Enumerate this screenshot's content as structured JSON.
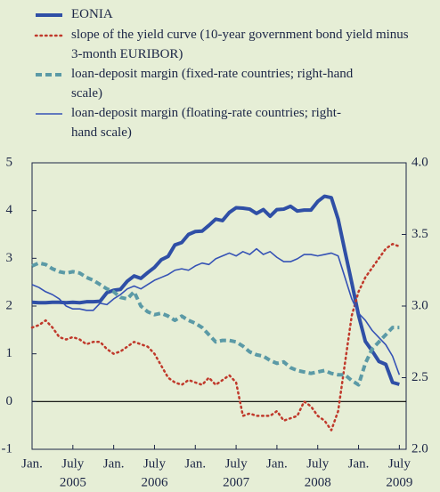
{
  "chart_data": {
    "type": "line",
    "legend": "top-left",
    "x": [
      "2005-01",
      "2005-02",
      "2005-03",
      "2005-04",
      "2005-05",
      "2005-06",
      "2005-07",
      "2005-08",
      "2005-09",
      "2005-10",
      "2005-11",
      "2005-12",
      "2006-01",
      "2006-02",
      "2006-03",
      "2006-04",
      "2006-05",
      "2006-06",
      "2006-07",
      "2006-08",
      "2006-09",
      "2006-10",
      "2006-11",
      "2006-12",
      "2007-01",
      "2007-02",
      "2007-03",
      "2007-04",
      "2007-05",
      "2007-06",
      "2007-07",
      "2007-08",
      "2007-09",
      "2007-10",
      "2007-11",
      "2007-12",
      "2008-01",
      "2008-02",
      "2008-03",
      "2008-04",
      "2008-05",
      "2008-06",
      "2008-07",
      "2008-08",
      "2008-09",
      "2008-10",
      "2008-11",
      "2008-12",
      "2009-01",
      "2009-02",
      "2009-03",
      "2009-04",
      "2009-05",
      "2009-06",
      "2009-07"
    ],
    "xlim": [
      "2005-01",
      "2009-08"
    ],
    "xticks": [
      {
        "value": "2005-01",
        "label": "Jan."
      },
      {
        "value": "2005-07",
        "label": "July"
      },
      {
        "value": "2006-01",
        "label": "Jan."
      },
      {
        "value": "2006-07",
        "label": "July"
      },
      {
        "value": "2007-01",
        "label": "Jan."
      },
      {
        "value": "2007-07",
        "label": "July"
      },
      {
        "value": "2008-01",
        "label": "Jan."
      },
      {
        "value": "2008-07",
        "label": "July"
      },
      {
        "value": "2009-01",
        "label": "Jan."
      },
      {
        "value": "2009-07",
        "label": "July"
      }
    ],
    "xtick_year_labels": [
      {
        "value": "2005-07",
        "label": "2005"
      },
      {
        "value": "2006-07",
        "label": "2006"
      },
      {
        "value": "2007-07",
        "label": "2007"
      },
      {
        "value": "2008-07",
        "label": "2008"
      },
      {
        "value": "2009-07",
        "label": "2009"
      }
    ],
    "ylim": [
      -1,
      5
    ],
    "yticks": [
      -1,
      0,
      1,
      2,
      3,
      4,
      5
    ],
    "y2lim": [
      2,
      4
    ],
    "y2ticks": [
      {
        "value": 2,
        "label": "2.0"
      },
      2.5,
      {
        "value": 3,
        "label": "3.0"
      },
      3.5,
      {
        "value": 4,
        "label": "4.0"
      }
    ],
    "series": [
      {
        "name": "EONIA",
        "color": "#2f4fa6",
        "style": "solid",
        "width": 4,
        "values": [
          2.08,
          2.07,
          2.07,
          2.08,
          2.08,
          2.07,
          2.08,
          2.07,
          2.09,
          2.09,
          2.1,
          2.28,
          2.33,
          2.35,
          2.52,
          2.63,
          2.58,
          2.7,
          2.81,
          2.97,
          3.04,
          3.28,
          3.33,
          3.5,
          3.56,
          3.57,
          3.69,
          3.82,
          3.79,
          3.96,
          4.06,
          4.05,
          4.03,
          3.94,
          4.02,
          3.88,
          4.02,
          4.03,
          4.09,
          3.99,
          4.01,
          4.01,
          4.19,
          4.3,
          4.27,
          3.82,
          3.15,
          2.49,
          1.81,
          1.26,
          1.06,
          0.84,
          0.78,
          0.4,
          0.36
        ]
      },
      {
        "name": "slope of the yield curve (10-year government bond yield minus 3-month EURIBOR)",
        "color": "#c0392b",
        "style": "dotted",
        "width": 2.5,
        "values": [
          1.55,
          1.6,
          1.7,
          1.55,
          1.35,
          1.3,
          1.35,
          1.3,
          1.2,
          1.25,
          1.25,
          1.1,
          1.0,
          1.05,
          1.15,
          1.25,
          1.2,
          1.15,
          1.0,
          0.75,
          0.5,
          0.4,
          0.35,
          0.45,
          0.4,
          0.35,
          0.5,
          0.35,
          0.45,
          0.55,
          0.4,
          -0.3,
          -0.25,
          -0.3,
          -0.3,
          -0.3,
          -0.2,
          -0.4,
          -0.35,
          -0.3,
          0.0,
          -0.1,
          -0.3,
          -0.4,
          -0.6,
          -0.2,
          0.8,
          1.8,
          2.3,
          2.6,
          2.8,
          3.0,
          3.2,
          3.3,
          3.25
        ]
      },
      {
        "name": "loan-deposit margin (fixed-rate countries; right-hand scale)",
        "color": "#5b9aa6",
        "style": "dashed",
        "width": 4,
        "axis": "y2",
        "values": [
          3.28,
          3.3,
          3.29,
          3.26,
          3.24,
          3.23,
          3.24,
          3.23,
          3.2,
          3.18,
          3.15,
          3.12,
          3.1,
          3.06,
          3.05,
          3.1,
          3.0,
          2.96,
          2.94,
          2.95,
          2.93,
          2.9,
          2.93,
          2.9,
          2.88,
          2.85,
          2.8,
          2.75,
          2.76,
          2.76,
          2.75,
          2.72,
          2.68,
          2.66,
          2.65,
          2.62,
          2.6,
          2.61,
          2.57,
          2.55,
          2.54,
          2.53,
          2.54,
          2.55,
          2.53,
          2.52,
          2.52,
          2.48,
          2.45,
          2.6,
          2.7,
          2.75,
          2.8,
          2.85,
          2.85
        ]
      },
      {
        "name": "loan-deposit margin (floating-rate countries; right-hand scale)",
        "color": "#3552b5",
        "style": "solid",
        "width": 1.6,
        "axis": "y2",
        "values": [
          3.15,
          3.13,
          3.1,
          3.08,
          3.05,
          3.0,
          2.98,
          2.98,
          2.97,
          2.97,
          3.02,
          3.01,
          3.05,
          3.08,
          3.12,
          3.14,
          3.12,
          3.15,
          3.18,
          3.2,
          3.22,
          3.25,
          3.26,
          3.25,
          3.28,
          3.3,
          3.29,
          3.33,
          3.35,
          3.37,
          3.35,
          3.38,
          3.36,
          3.4,
          3.36,
          3.38,
          3.34,
          3.31,
          3.31,
          3.33,
          3.36,
          3.36,
          3.35,
          3.36,
          3.37,
          3.35,
          3.2,
          3.05,
          2.95,
          2.9,
          2.83,
          2.78,
          2.73,
          2.65,
          2.52
        ]
      }
    ]
  }
}
